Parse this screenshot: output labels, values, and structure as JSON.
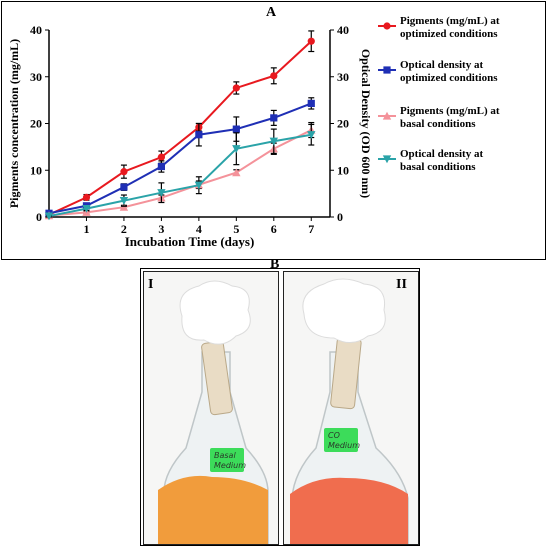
{
  "panel_a_label": "A",
  "panel_b_label": "B",
  "chart_data": {
    "type": "line",
    "xlabel": "Incubation Time (days)",
    "ylabel_left": "Pigments concentration (mg/mL)",
    "ylabel_right": "Optical Density (OD 600 nm)",
    "x": [
      0,
      1,
      2,
      3,
      4,
      5,
      6,
      7
    ],
    "x_tick_labels": [
      "1",
      "2",
      "3",
      "4",
      "5",
      "6",
      "7"
    ],
    "xlim": [
      0,
      7.5
    ],
    "ylim_left": [
      0,
      40
    ],
    "ylim_right": [
      0,
      40
    ],
    "y_ticks": [
      0,
      10,
      20,
      30,
      40
    ],
    "grid": false,
    "legend_placement": "right",
    "series": [
      {
        "name": "Pigments (mg/mL) at optimized conditions",
        "axis": "left",
        "color": "#e8191f",
        "marker": "circle",
        "values": [
          0.5,
          4.2,
          9.7,
          12.8,
          19.2,
          27.6,
          30.2,
          37.6
        ],
        "errors": [
          0.3,
          0.6,
          1.4,
          1.3,
          0.8,
          1.3,
          1.7,
          2.2
        ]
      },
      {
        "name": "Optical density at optimized conditions",
        "axis": "right",
        "color": "#1f2fb5",
        "marker": "square",
        "values": [
          0.8,
          2.4,
          6.4,
          10.8,
          17.6,
          18.8,
          21.2,
          24.3
        ],
        "errors": [
          0.3,
          0.5,
          0.7,
          1.2,
          2.4,
          2.6,
          1.6,
          1.2
        ]
      },
      {
        "name": "Pigments (mg/mL) at basal conditions",
        "axis": "left",
        "color": "#f4929a",
        "marker": "triangle-up",
        "values": [
          0.3,
          1.0,
          2.1,
          4.1,
          6.9,
          9.5,
          14.6,
          18.6
        ],
        "errors": [
          0.2,
          0.3,
          0.4,
          0.6,
          0.8,
          0.6,
          1.2,
          1.6
        ]
      },
      {
        "name": "Optical density at basal conditions",
        "axis": "right",
        "color": "#2aa3a8",
        "marker": "triangle-down",
        "values": [
          0.2,
          1.8,
          3.5,
          5.2,
          6.8,
          14.6,
          16.2,
          17.6
        ],
        "errors": [
          0.2,
          0.4,
          1.2,
          2.1,
          1.8,
          3.4,
          2.6,
          2.2
        ]
      }
    ]
  },
  "photo": {
    "left_label": "I",
    "right_label": "II",
    "left_tag": [
      "Basal",
      "Medium"
    ],
    "right_tag": [
      "CO",
      "Medium"
    ],
    "left_liquid_color": "#f19c3c",
    "right_liquid_color": "#f06d4e",
    "tag_color": "#3cdc5a"
  }
}
